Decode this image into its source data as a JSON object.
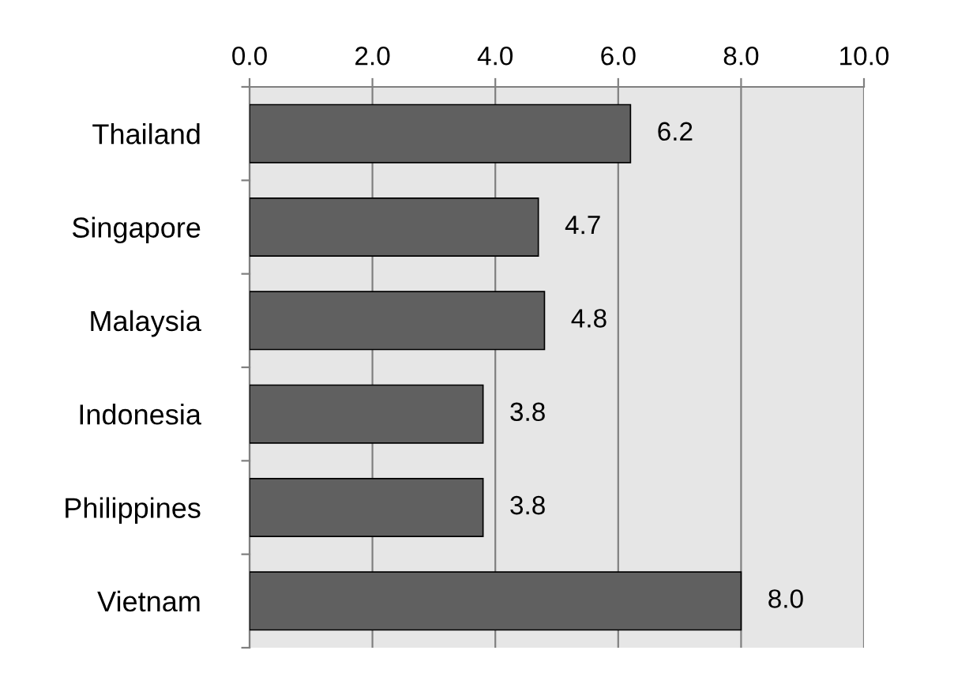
{
  "chart_data": {
    "type": "bar",
    "orientation": "horizontal",
    "categories": [
      "Thailand",
      "Singapore",
      "Malaysia",
      "Indonesia",
      "Philippines",
      "Vietnam"
    ],
    "values": [
      6.2,
      4.7,
      4.8,
      3.8,
      3.8,
      8.0
    ],
    "value_labels": [
      "6.2",
      "4.7",
      "4.8",
      "3.8",
      "3.8",
      "8.0"
    ],
    "color": "#606060",
    "xlim": [
      0,
      10
    ],
    "xticks": [
      {
        "value": 0,
        "label": "0.0"
      },
      {
        "value": 2,
        "label": "2.0"
      },
      {
        "value": 4,
        "label": "4.0"
      },
      {
        "value": 6,
        "label": "6.0"
      },
      {
        "value": 8,
        "label": "8.0"
      },
      {
        "value": 10,
        "label": "10.0"
      }
    ],
    "grid": "x"
  }
}
